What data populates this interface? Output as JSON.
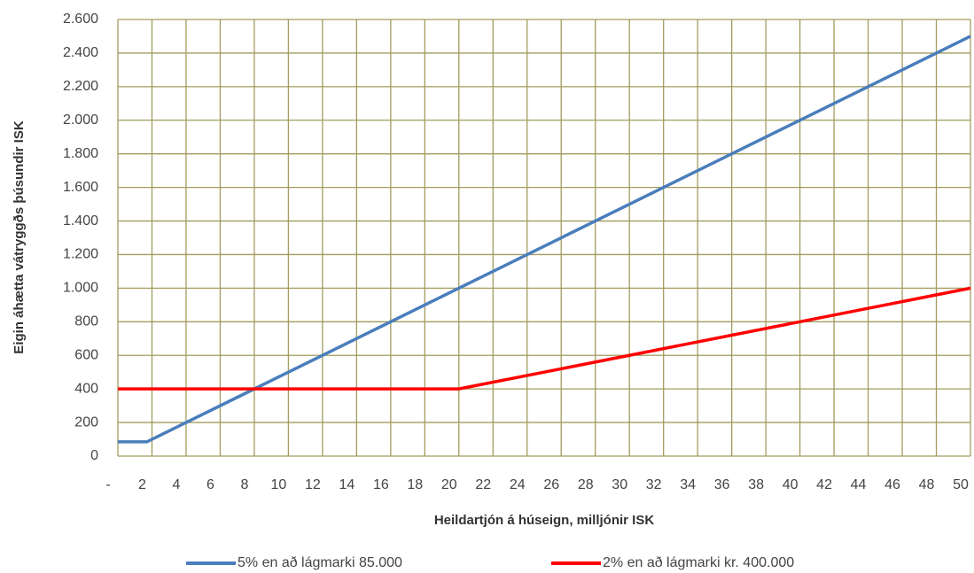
{
  "chart_data": {
    "type": "line",
    "xlabel": "Heildartjón á húseign, milljónir ISK",
    "ylabel": "Eigin áhætta vátryggðs þúsundir ISK",
    "xlim": [
      0,
      50
    ],
    "xticks": [
      {
        "value": 0,
        "label": "-"
      },
      2,
      4,
      6,
      8,
      10,
      12,
      14,
      16,
      18,
      20,
      22,
      24,
      26,
      28,
      30,
      32,
      34,
      36,
      38,
      40,
      42,
      44,
      46,
      48,
      50
    ],
    "ylim": [
      0,
      2600
    ],
    "yticks": [
      0,
      200,
      400,
      600,
      800,
      {
        "value": 1000,
        "label": "1.000"
      },
      {
        "value": 1200,
        "label": "1.200"
      },
      {
        "value": 1400,
        "label": "1.400"
      },
      {
        "value": 1600,
        "label": "1.600"
      },
      {
        "value": 1800,
        "label": "1.800"
      },
      {
        "value": 2000,
        "label": "2.000"
      },
      {
        "value": 2200,
        "label": "2.200"
      },
      {
        "value": 2400,
        "label": "2.400"
      },
      {
        "value": 2600,
        "label": "2.600"
      }
    ],
    "grid": true,
    "legend": "bottom",
    "series": [
      {
        "name": "5% en að lágmarki 85.000",
        "color": "#4a7ebb",
        "x": [
          0,
          1.7,
          50
        ],
        "values": [
          85,
          85,
          2500
        ]
      },
      {
        "name": "2% en að lágmarki kr. 400.000",
        "color": "#ff0000",
        "x": [
          0,
          20,
          50
        ],
        "values": [
          400,
          400,
          1000
        ]
      }
    ]
  }
}
